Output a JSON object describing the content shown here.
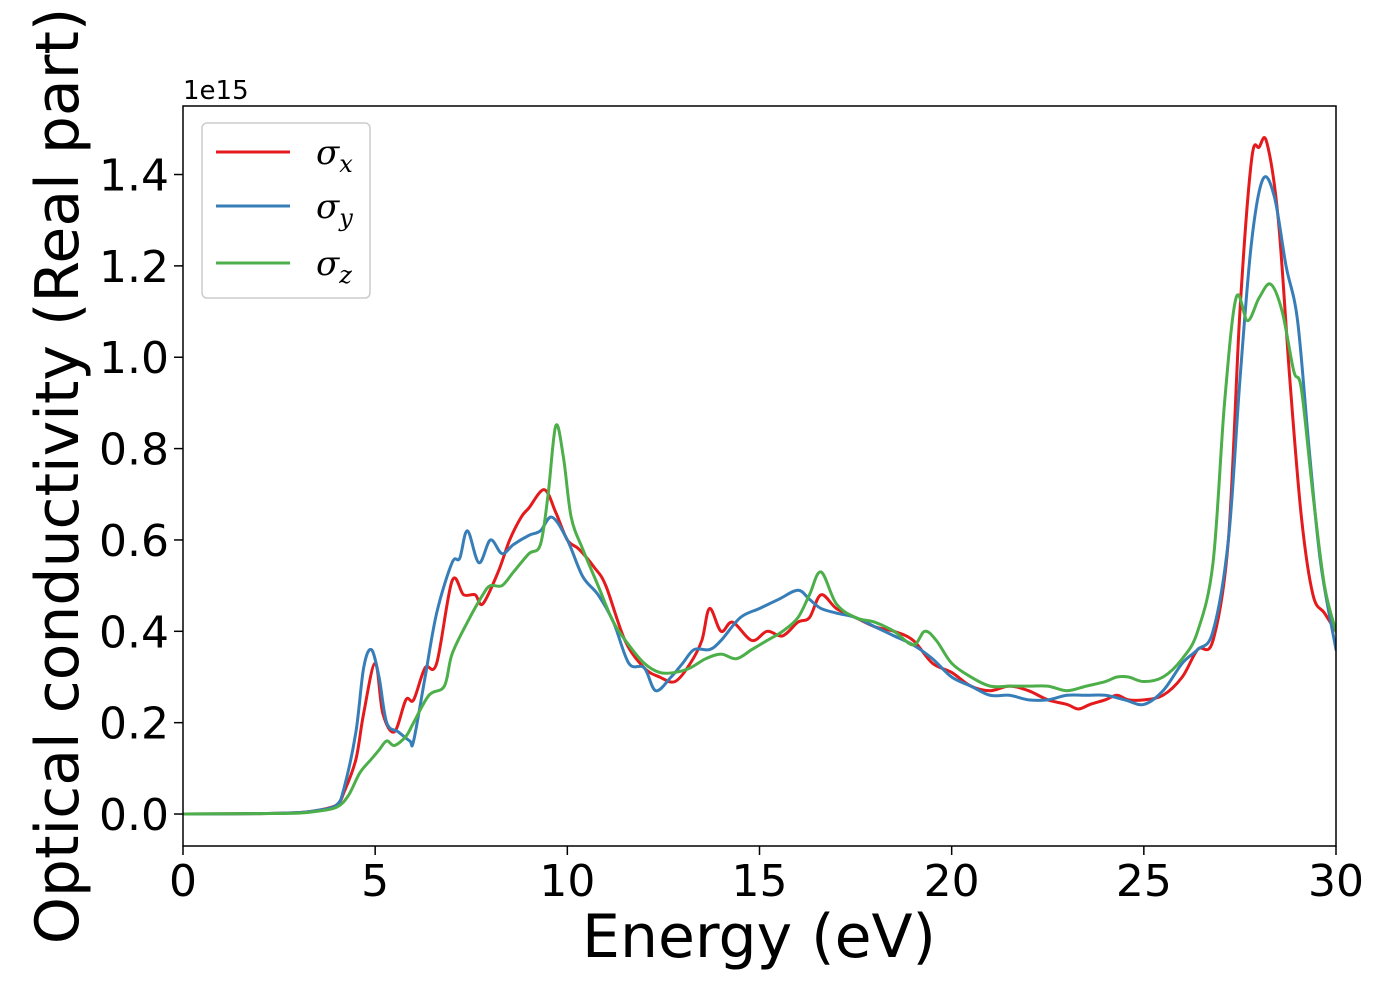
{
  "chart_data": {
    "type": "line",
    "xlabel": "Energy (eV)",
    "ylabel": "Optical conductivity (Real part)",
    "y_offset_label": "1e15",
    "xlim": [
      0,
      30
    ],
    "ylim": [
      -0.07,
      1.55
    ],
    "x_ticks": [
      0,
      5,
      10,
      15,
      20,
      25,
      30
    ],
    "x_tick_labels": [
      "0",
      "5",
      "10",
      "15",
      "20",
      "25",
      "30"
    ],
    "y_ticks": [
      0.0,
      0.2,
      0.4,
      0.6,
      0.8,
      1.0,
      1.2,
      1.4
    ],
    "y_tick_labels": [
      "0.0",
      "0.2",
      "0.4",
      "0.6",
      "0.8",
      "1.0",
      "1.2",
      "1.4"
    ],
    "grid": false,
    "legend_position": "top-left",
    "series": [
      {
        "name": "σx",
        "symbol": "σ",
        "subscript": "x",
        "color": "#e41a1c",
        "x": [
          0,
          2,
          3,
          3.5,
          4.0,
          4.2,
          4.5,
          4.7,
          5.0,
          5.2,
          5.5,
          5.8,
          6.0,
          6.3,
          6.6,
          7.0,
          7.3,
          7.6,
          7.8,
          8.2,
          8.5,
          8.8,
          9.0,
          9.4,
          9.7,
          10.0,
          10.3,
          10.7,
          11.0,
          11.5,
          12.0,
          12.4,
          12.8,
          13.2,
          13.5,
          13.7,
          14.0,
          14.3,
          14.8,
          15.2,
          15.6,
          16.0,
          16.3,
          16.6,
          17.0,
          17.5,
          18.0,
          18.5,
          19.0,
          19.5,
          20.0,
          20.5,
          21.0,
          21.5,
          22.0,
          22.5,
          23.0,
          23.3,
          23.6,
          24.0,
          24.3,
          24.6,
          25.0,
          25.5,
          26.0,
          26.4,
          26.8,
          27.2,
          27.5,
          27.8,
          28.0,
          28.2,
          28.5,
          28.8,
          29.1,
          29.4,
          29.7,
          30.0
        ],
        "y": [
          0,
          0.001,
          0.003,
          0.008,
          0.02,
          0.05,
          0.12,
          0.22,
          0.33,
          0.22,
          0.18,
          0.25,
          0.25,
          0.32,
          0.33,
          0.51,
          0.48,
          0.48,
          0.46,
          0.53,
          0.6,
          0.65,
          0.67,
          0.71,
          0.66,
          0.6,
          0.58,
          0.54,
          0.5,
          0.38,
          0.32,
          0.3,
          0.29,
          0.33,
          0.38,
          0.45,
          0.4,
          0.42,
          0.38,
          0.4,
          0.39,
          0.42,
          0.43,
          0.48,
          0.45,
          0.43,
          0.41,
          0.4,
          0.38,
          0.33,
          0.31,
          0.28,
          0.27,
          0.28,
          0.27,
          0.25,
          0.24,
          0.23,
          0.24,
          0.25,
          0.26,
          0.25,
          0.25,
          0.26,
          0.3,
          0.36,
          0.38,
          0.6,
          1.1,
          1.43,
          1.46,
          1.47,
          1.3,
          0.95,
          0.65,
          0.48,
          0.44,
          0.4
        ]
      },
      {
        "name": "σy",
        "symbol": "σ",
        "subscript": "y",
        "color": "#377eb8",
        "x": [
          0,
          2,
          3,
          3.5,
          4.0,
          4.2,
          4.5,
          4.7,
          4.9,
          5.1,
          5.3,
          5.6,
          5.9,
          6.0,
          6.3,
          6.6,
          7.0,
          7.2,
          7.4,
          7.7,
          8.0,
          8.3,
          8.6,
          9.0,
          9.3,
          9.6,
          10.0,
          10.4,
          10.8,
          11.2,
          11.6,
          12.0,
          12.3,
          12.7,
          13.0,
          13.3,
          13.7,
          14.0,
          14.5,
          15.0,
          15.5,
          16.0,
          16.3,
          16.6,
          17.0,
          17.5,
          18.0,
          18.5,
          19.0,
          19.5,
          20.0,
          20.5,
          21.0,
          21.5,
          22.0,
          22.5,
          23.0,
          23.5,
          24.0,
          24.5,
          25.0,
          25.5,
          26.0,
          26.4,
          26.8,
          27.2,
          27.5,
          27.8,
          28.1,
          28.4,
          28.7,
          29.0,
          29.3,
          29.6,
          30.0
        ],
        "y": [
          0,
          0.001,
          0.003,
          0.008,
          0.02,
          0.06,
          0.18,
          0.32,
          0.36,
          0.3,
          0.2,
          0.18,
          0.16,
          0.16,
          0.3,
          0.44,
          0.55,
          0.56,
          0.62,
          0.55,
          0.6,
          0.57,
          0.59,
          0.61,
          0.62,
          0.65,
          0.6,
          0.52,
          0.48,
          0.42,
          0.33,
          0.32,
          0.27,
          0.3,
          0.33,
          0.36,
          0.36,
          0.38,
          0.43,
          0.45,
          0.47,
          0.49,
          0.47,
          0.45,
          0.44,
          0.43,
          0.41,
          0.39,
          0.37,
          0.34,
          0.3,
          0.28,
          0.26,
          0.26,
          0.25,
          0.25,
          0.26,
          0.26,
          0.26,
          0.25,
          0.24,
          0.27,
          0.33,
          0.36,
          0.4,
          0.6,
          0.95,
          1.25,
          1.39,
          1.35,
          1.2,
          1.08,
          0.8,
          0.55,
          0.36
        ]
      },
      {
        "name": "σz",
        "symbol": "σ",
        "subscript": "z",
        "color": "#4daf4a",
        "x": [
          0,
          2,
          3,
          3.5,
          4.0,
          4.3,
          4.6,
          4.9,
          5.1,
          5.3,
          5.5,
          5.8,
          6.0,
          6.4,
          6.8,
          7.0,
          7.4,
          7.8,
          8.0,
          8.3,
          8.6,
          9.0,
          9.3,
          9.5,
          9.7,
          9.9,
          10.1,
          10.4,
          10.8,
          11.2,
          11.6,
          12.0,
          12.4,
          12.8,
          13.2,
          13.6,
          14.0,
          14.4,
          14.8,
          15.2,
          15.6,
          16.0,
          16.3,
          16.6,
          17.0,
          17.5,
          18.0,
          18.5,
          19.0,
          19.3,
          19.6,
          20.0,
          20.5,
          21.0,
          21.5,
          22.0,
          22.5,
          23.0,
          23.5,
          24.0,
          24.3,
          24.6,
          25.0,
          25.5,
          26.0,
          26.4,
          26.8,
          27.1,
          27.4,
          27.7,
          28.0,
          28.3,
          28.6,
          28.9,
          29.1,
          29.4,
          29.7,
          30.0
        ],
        "y": [
          0,
          0.001,
          0.002,
          0.006,
          0.015,
          0.04,
          0.09,
          0.12,
          0.14,
          0.16,
          0.15,
          0.17,
          0.2,
          0.26,
          0.28,
          0.35,
          0.42,
          0.48,
          0.5,
          0.5,
          0.53,
          0.57,
          0.59,
          0.7,
          0.85,
          0.78,
          0.65,
          0.58,
          0.5,
          0.42,
          0.37,
          0.33,
          0.31,
          0.31,
          0.32,
          0.34,
          0.35,
          0.34,
          0.36,
          0.38,
          0.4,
          0.43,
          0.48,
          0.53,
          0.46,
          0.43,
          0.42,
          0.4,
          0.37,
          0.4,
          0.38,
          0.33,
          0.3,
          0.28,
          0.28,
          0.28,
          0.28,
          0.27,
          0.28,
          0.29,
          0.3,
          0.3,
          0.29,
          0.3,
          0.34,
          0.4,
          0.55,
          0.9,
          1.13,
          1.08,
          1.13,
          1.16,
          1.1,
          0.97,
          0.93,
          0.7,
          0.5,
          0.4
        ]
      }
    ]
  }
}
